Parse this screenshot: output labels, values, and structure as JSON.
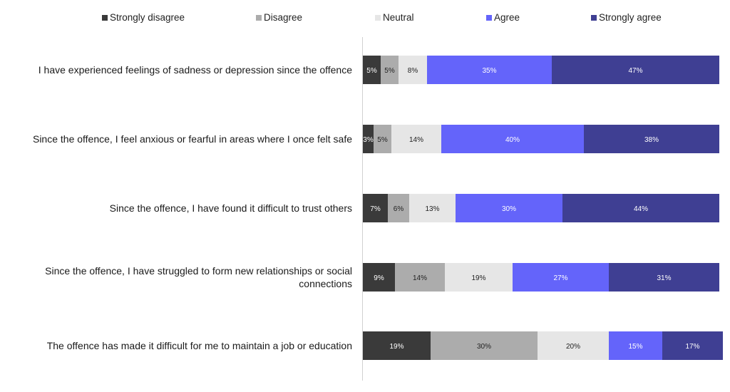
{
  "chart_data": {
    "type": "bar",
    "orientation": "horizontal",
    "stacked": true,
    "normalized": "100%",
    "legend_position": "top",
    "categories": [
      "I have experienced feelings of sadness or depression since the offence",
      "Since the offence, I feel anxious or fearful in areas where I once felt safe",
      "Since the offence, I have found it difficult to trust others",
      "Since the offence, I have struggled to form new relationships or social connections",
      "The offence has made it difficult for me to maintain a job or education"
    ],
    "series": [
      {
        "name": "Strongly disagree",
        "color": "#3a3a3a",
        "label_color": "#ffffff",
        "values": [
          5,
          3,
          7,
          9,
          19
        ]
      },
      {
        "name": "Disagree",
        "color": "#acacac",
        "label_color": "#222222",
        "values": [
          5,
          5,
          6,
          14,
          30
        ]
      },
      {
        "name": "Neutral",
        "color": "#e6e6e6",
        "label_color": "#222222",
        "values": [
          8,
          14,
          13,
          19,
          20
        ]
      },
      {
        "name": "Agree",
        "color": "#6464fa",
        "label_color": "#ffffff",
        "values": [
          35,
          40,
          30,
          27,
          15
        ]
      },
      {
        "name": "Strongly agree",
        "color": "#3f3f93",
        "label_color": "#ffffff",
        "values": [
          47,
          38,
          44,
          31,
          17
        ]
      }
    ],
    "value_suffix": "%",
    "xlim": [
      0,
      100
    ]
  }
}
